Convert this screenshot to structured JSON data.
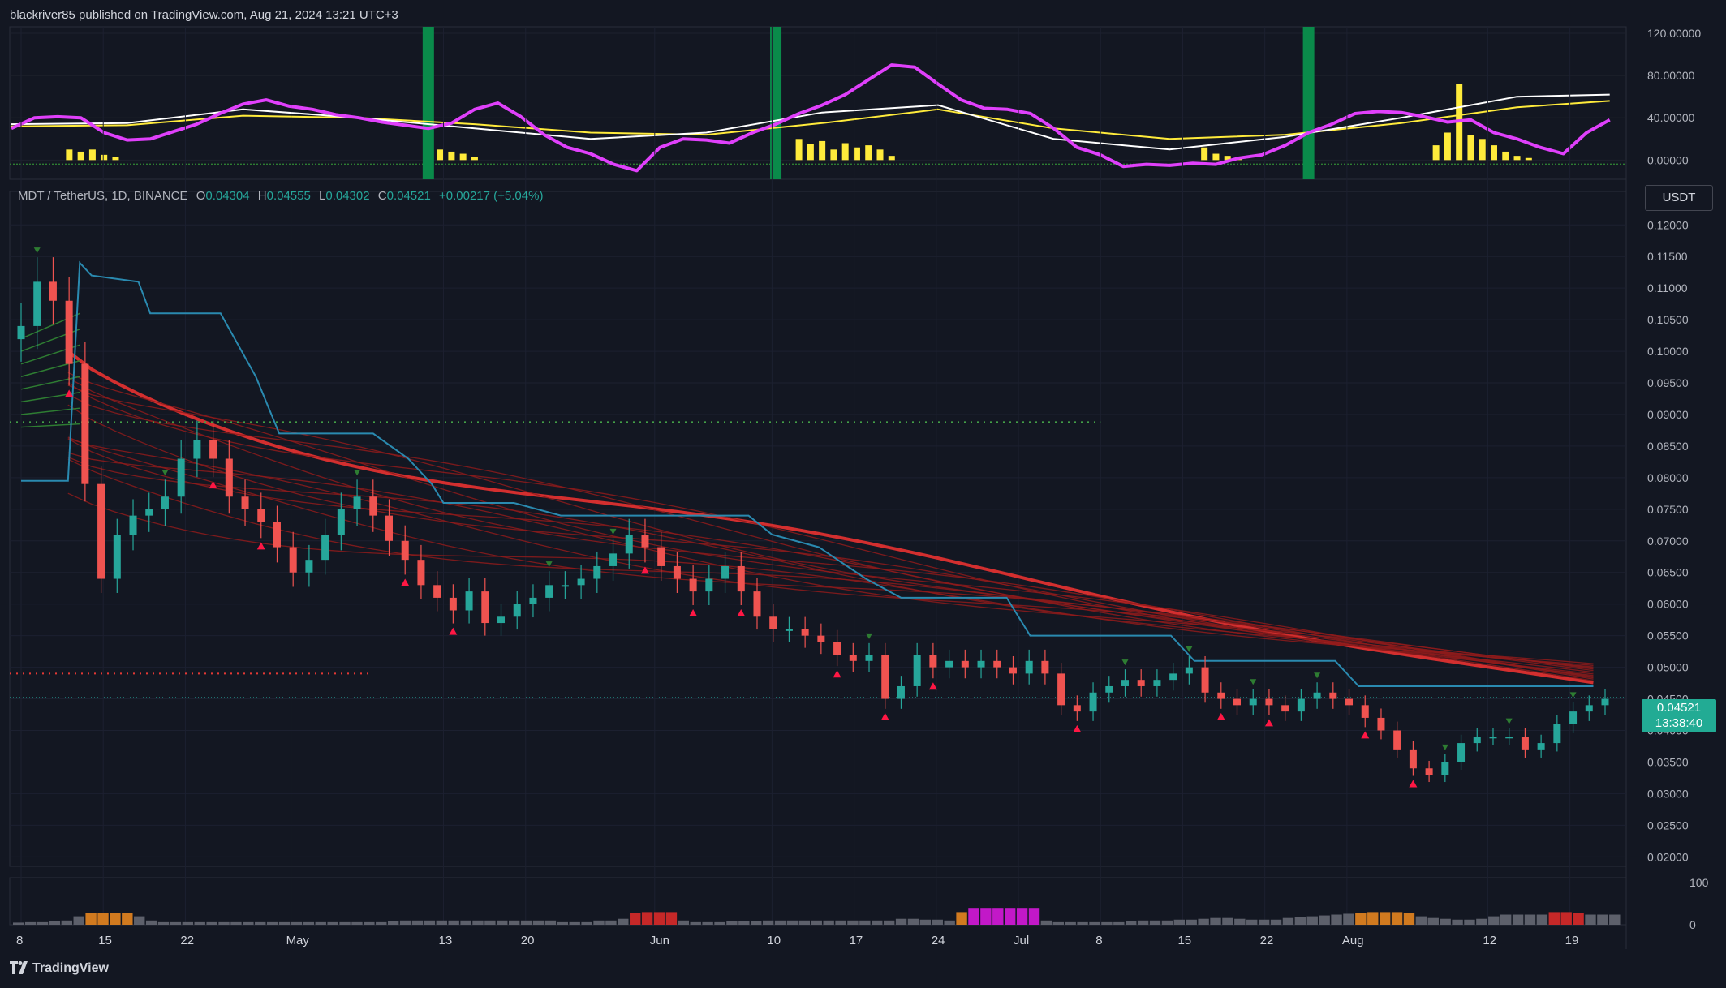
{
  "publisher": "blackriver85 published on TradingView.com, Aug 21, 2024 13:21 UTC+3",
  "symbol": {
    "name": "MDT / TetherUS, 1D, BINANCE",
    "open_label": "O",
    "open": "0.04304",
    "high_label": "H",
    "high": "0.04555",
    "low_label": "L",
    "low": "0.04302",
    "close_label": "C",
    "close": "0.04521",
    "change": "+0.00217 (+5.04%)"
  },
  "currency_badge": "USDT",
  "last_price": {
    "price": "0.04521",
    "countdown": "13:38:40"
  },
  "footer": {
    "brand": "TradingView",
    "icon": "tradingview-logo-icon"
  },
  "colors": {
    "background": "#131722",
    "up": "#26a69a",
    "down": "#ef5350",
    "ribbon_red": "#b71c1c",
    "ribbon_green": "#2e7d32",
    "baseline": "#2a8ab0",
    "oscillator_main": "#e040fb",
    "oscillator_signal": "#ffffff",
    "oscillator_slow": "#ffeb3b"
  },
  "chart_data": [
    {
      "type": "line",
      "panel": "oscillator",
      "y_ticks": [
        "120.00000",
        "80.00000",
        "40.00000",
        "0.00000"
      ],
      "ylim": [
        -12,
        120
      ],
      "grid": true,
      "series": [
        {
          "x": [
            0,
            2,
            4,
            6,
            8,
            10,
            12,
            14,
            16,
            18,
            20,
            22,
            24,
            26,
            28,
            30,
            32,
            34,
            36,
            38,
            40,
            42,
            44,
            46,
            48,
            50,
            52,
            54,
            56,
            58,
            60,
            62,
            64,
            66,
            68,
            70,
            72,
            74,
            76,
            78,
            80,
            82,
            84,
            86,
            88,
            90,
            92,
            94,
            96,
            98,
            100,
            102,
            104,
            106,
            108,
            110,
            112,
            114,
            116,
            118,
            120,
            122,
            124,
            126,
            128,
            130,
            132,
            134,
            136,
            138
          ],
          "values": [
            30,
            40,
            41,
            40,
            26,
            19,
            20,
            27,
            34,
            44,
            53,
            57,
            51,
            48,
            43,
            40,
            36,
            33,
            30,
            35,
            48,
            54,
            41,
            24,
            12,
            6,
            -4,
            -10,
            12,
            20,
            19,
            16,
            26,
            34,
            44,
            52,
            62,
            76,
            90,
            88,
            72,
            57,
            49,
            48,
            44,
            30,
            12,
            5,
            -6,
            -4,
            -5,
            -3,
            -4,
            2,
            5,
            14,
            26,
            34,
            44,
            46,
            45,
            41,
            36,
            38,
            26,
            20,
            12,
            6,
            26,
            38
          ]
        },
        {
          "x": [
            0,
            10,
            20,
            30,
            40,
            50,
            60,
            70,
            80,
            90,
            100,
            110,
            120,
            130,
            138
          ],
          "values": [
            34,
            35,
            48,
            40,
            30,
            20,
            26,
            45,
            52,
            20,
            10,
            22,
            40,
            60,
            62
          ]
        },
        {
          "x": [
            0,
            10,
            20,
            30,
            40,
            50,
            60,
            70,
            80,
            90,
            100,
            110,
            120,
            130,
            138
          ],
          "values": [
            32,
            33,
            42,
            40,
            34,
            26,
            24,
            35,
            48,
            30,
            20,
            24,
            35,
            50,
            56
          ]
        }
      ],
      "histogram": [
        0,
        0,
        0,
        0,
        0,
        10,
        8,
        10,
        5,
        3,
        0,
        0,
        0,
        0,
        0,
        0,
        0,
        0,
        0,
        0,
        0,
        0,
        0,
        0,
        0,
        0,
        0,
        0,
        0,
        0,
        0,
        0,
        0,
        0,
        0,
        0,
        0,
        10,
        8,
        6,
        3,
        0,
        0,
        0,
        0,
        0,
        0,
        0,
        0,
        0,
        0,
        0,
        0,
        0,
        0,
        0,
        0,
        0,
        0,
        0,
        0,
        0,
        0,
        0,
        0,
        0,
        0,
        0,
        20,
        15,
        18,
        10,
        16,
        12,
        14,
        10,
        4,
        0,
        0,
        0,
        0,
        0,
        0,
        0,
        0,
        0,
        0,
        0,
        0,
        0,
        0,
        0,
        0,
        0,
        0,
        0,
        0,
        0,
        0,
        0,
        0,
        0,
        0,
        12,
        6,
        4,
        2,
        0,
        0,
        0,
        0,
        0,
        0,
        0,
        0,
        0,
        0,
        0,
        0,
        0,
        0,
        0,
        0,
        14,
        26,
        72,
        24,
        20,
        14,
        8,
        4,
        2,
        0,
        0,
        0,
        0,
        0,
        0,
        0,
        0,
        0,
        0,
        0
      ],
      "highlight_bars_at_index": [
        36,
        66,
        112
      ]
    },
    {
      "type": "candlestick",
      "panel": "price",
      "title": "MDT / TetherUS, 1D, BINANCE",
      "y_ticks": [
        "0.12000",
        "0.11500",
        "0.11000",
        "0.10500",
        "0.10000",
        "0.09500",
        "0.09000",
        "0.08500",
        "0.08000",
        "0.07500",
        "0.07000",
        "0.06500",
        "0.06000",
        "0.05500",
        "0.05000",
        "0.04500",
        "0.04000",
        "0.03500",
        "0.03000",
        "0.02500",
        "0.02000"
      ],
      "ylim": [
        0.0185,
        0.1235
      ],
      "x_ticks": [
        "8",
        "15",
        "22",
        "May",
        "13",
        "20",
        "Jun",
        "10",
        "17",
        "24",
        "Jul",
        "8",
        "15",
        "22",
        "Aug",
        "12",
        "19"
      ],
      "x_tick_index": [
        0,
        7,
        14,
        23,
        36,
        43,
        54,
        64,
        71,
        78,
        85,
        92,
        99,
        106,
        113,
        125,
        132
      ],
      "ohlc_close": [
        0.104,
        0.111,
        0.108,
        0.098,
        0.079,
        0.064,
        0.071,
        0.074,
        0.075,
        0.077,
        0.083,
        0.086,
        0.083,
        0.077,
        0.075,
        0.073,
        0.069,
        0.065,
        0.067,
        0.071,
        0.075,
        0.077,
        0.074,
        0.07,
        0.067,
        0.063,
        0.061,
        0.059,
        0.062,
        0.057,
        0.058,
        0.06,
        0.061,
        0.063,
        0.063,
        0.064,
        0.066,
        0.068,
        0.071,
        0.069,
        0.066,
        0.064,
        0.062,
        0.064,
        0.066,
        0.062,
        0.058,
        0.056,
        0.056,
        0.055,
        0.054,
        0.052,
        0.051,
        0.052,
        0.045,
        0.047,
        0.052,
        0.05,
        0.051,
        0.05,
        0.051,
        0.05,
        0.049,
        0.051,
        0.049,
        0.044,
        0.043,
        0.046,
        0.047,
        0.048,
        0.047,
        0.048,
        0.049,
        0.05,
        0.046,
        0.045,
        0.044,
        0.045,
        0.044,
        0.043,
        0.045,
        0.046,
        0.045,
        0.044,
        0.042,
        0.04,
        0.037,
        0.034,
        0.033,
        0.035,
        0.038,
        0.039,
        0.039,
        0.039,
        0.037,
        0.038,
        0.041,
        0.043,
        0.044,
        0.045
      ],
      "reference_lines": [
        {
          "name": "upper-dotted-green",
          "value": 0.0888
        },
        {
          "name": "dotted-red",
          "value": 0.049
        },
        {
          "name": "last-price-dotted",
          "value": 0.04521
        }
      ]
    },
    {
      "type": "bar",
      "panel": "volume-oscillator",
      "y_ticks": [
        "100",
        "0"
      ],
      "ylim": [
        0,
        100
      ],
      "values": [
        5,
        6,
        6,
        8,
        10,
        20,
        28,
        28,
        28,
        28,
        20,
        10,
        6,
        6,
        6,
        6,
        6,
        6,
        6,
        6,
        6,
        6,
        6,
        6,
        6,
        6,
        6,
        6,
        6,
        6,
        6,
        8,
        10,
        10,
        10,
        10,
        10,
        10,
        10,
        10,
        10,
        10,
        10,
        10,
        10,
        6,
        6,
        6,
        10,
        10,
        14,
        28,
        30,
        30,
        30,
        10,
        6,
        6,
        6,
        8,
        8,
        8,
        10,
        10,
        10,
        10,
        10,
        10,
        10,
        10,
        10,
        10,
        10,
        14,
        14,
        12,
        12,
        10,
        30,
        40,
        40,
        40,
        40,
        40,
        40,
        10,
        6,
        6,
        6,
        6,
        6,
        6,
        8,
        10,
        10,
        10,
        12,
        12,
        14,
        16,
        16,
        14,
        12,
        12,
        12,
        16,
        18,
        20,
        22,
        24,
        26,
        28,
        30,
        30,
        30,
        28,
        20,
        16,
        14,
        12,
        12,
        14,
        20,
        24,
        24,
        24,
        24,
        30,
        30,
        28,
        24,
        24,
        24
      ],
      "colors_note": "grey default, orange and red high, magenta extreme"
    }
  ]
}
